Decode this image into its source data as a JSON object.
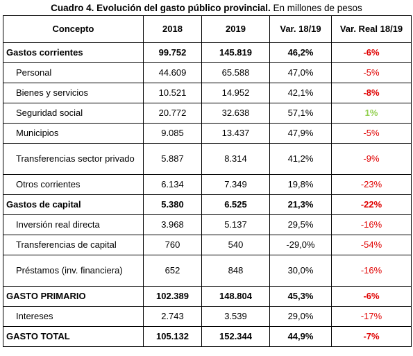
{
  "title": {
    "main": "Cuadro 4. Evolución del gasto público provincial.",
    "note": "En millones de pesos"
  },
  "table": {
    "headers": [
      "Concepto",
      "2018",
      "2019",
      "Var. 18/19",
      "Var. Real 18/19"
    ],
    "rows": [
      {
        "cells": [
          "Gastos corrientes",
          "99.752",
          "145.819",
          "46,2%",
          "-6%"
        ],
        "bold": true,
        "indent": false,
        "last_bold": true,
        "last_color": "#e00000"
      },
      {
        "cells": [
          "Personal",
          "44.609",
          "65.588",
          "47,0%",
          "-5%"
        ],
        "bold": false,
        "indent": true,
        "last_bold": false,
        "last_color": "#e00000"
      },
      {
        "cells": [
          "Bienes y servicios",
          "10.521",
          "14.952",
          "42,1%",
          "-8%"
        ],
        "bold": false,
        "indent": true,
        "last_bold": true,
        "last_color": "#e00000"
      },
      {
        "cells": [
          "Seguridad social",
          "20.772",
          "32.638",
          "57,1%",
          "1%"
        ],
        "bold": false,
        "indent": true,
        "last_bold": true,
        "last_color": "#92d050"
      },
      {
        "cells": [
          "Municipios",
          "9.085",
          "13.437",
          "47,9%",
          "-5%"
        ],
        "bold": false,
        "indent": true,
        "last_bold": false,
        "last_color": "#e00000"
      },
      {
        "cells": [
          "Transferencias sector privado",
          "5.887",
          "8.314",
          "41,2%",
          "-9%"
        ],
        "bold": false,
        "indent": true,
        "last_bold": false,
        "last_color": "#e00000"
      },
      {
        "cells": [
          "Otros corrientes",
          "6.134",
          "7.349",
          "19,8%",
          "-23%"
        ],
        "bold": false,
        "indent": true,
        "last_bold": false,
        "last_color": "#e00000"
      },
      {
        "cells": [
          "Gastos de capital",
          "5.380",
          "6.525",
          "21,3%",
          "-22%"
        ],
        "bold": true,
        "indent": false,
        "last_bold": true,
        "last_color": "#e00000"
      },
      {
        "cells": [
          "Inversión real directa",
          "3.968",
          "5.137",
          "29,5%",
          "-16%"
        ],
        "bold": false,
        "indent": true,
        "last_bold": false,
        "last_color": "#e00000"
      },
      {
        "cells": [
          "Transferencias de capital",
          "760",
          "540",
          "-29,0%",
          "-54%"
        ],
        "bold": false,
        "indent": true,
        "last_bold": false,
        "last_color": "#e00000"
      },
      {
        "cells": [
          "Préstamos (inv. financiera)",
          "652",
          "848",
          "30,0%",
          "-16%"
        ],
        "bold": false,
        "indent": true,
        "last_bold": false,
        "last_color": "#e00000"
      },
      {
        "cells": [
          "GASTO PRIMARIO",
          "102.389",
          "148.804",
          "45,3%",
          "-6%"
        ],
        "bold": true,
        "indent": false,
        "last_bold": true,
        "last_color": "#e00000"
      },
      {
        "cells": [
          "Intereses",
          "2.743",
          "3.539",
          "29,0%",
          "-17%"
        ],
        "bold": false,
        "indent": true,
        "last_bold": false,
        "last_color": "#e00000"
      },
      {
        "cells": [
          "GASTO TOTAL",
          "105.132",
          "152.344",
          "44,9%",
          "-7%"
        ],
        "bold": true,
        "indent": false,
        "last_bold": true,
        "last_color": "#e00000"
      }
    ]
  }
}
